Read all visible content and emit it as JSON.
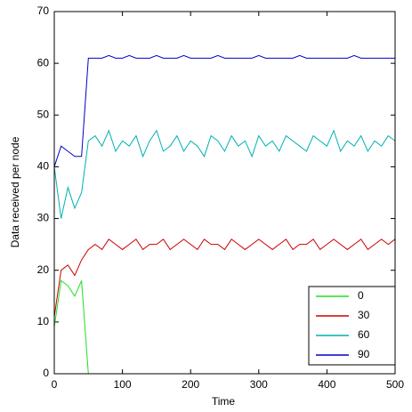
{
  "chart_data": {
    "type": "line",
    "xlabel": "Time",
    "ylabel": "Data received per node",
    "x": [
      0,
      10,
      20,
      30,
      40,
      50,
      60,
      70,
      80,
      90,
      100,
      110,
      120,
      130,
      140,
      150,
      160,
      170,
      180,
      190,
      200,
      210,
      220,
      230,
      240,
      250,
      260,
      270,
      280,
      290,
      300,
      310,
      320,
      330,
      340,
      350,
      360,
      370,
      380,
      390,
      400,
      410,
      420,
      430,
      440,
      450,
      460,
      470,
      480,
      490,
      500
    ],
    "series": [
      {
        "name": "0",
        "color": "#22dd22",
        "values": [
          9,
          18,
          17,
          15,
          18,
          0,
          null,
          null,
          null,
          null,
          null,
          null,
          null,
          null,
          null,
          null,
          null,
          null,
          null,
          null,
          null,
          null,
          null,
          null,
          null,
          null,
          null,
          null,
          null,
          null,
          null,
          null,
          null,
          null,
          null,
          null,
          null,
          null,
          null,
          null,
          null,
          null,
          null,
          null,
          null,
          null,
          null,
          null,
          null,
          null,
          null
        ]
      },
      {
        "name": "30",
        "color": "#cc0000",
        "values": [
          11,
          20,
          21,
          19,
          22,
          24,
          25,
          24,
          26,
          25,
          24,
          25,
          26,
          24,
          25,
          25,
          26,
          24,
          25,
          26,
          25,
          24,
          26,
          25,
          25,
          24,
          26,
          25,
          24,
          25,
          26,
          25,
          24,
          25,
          26,
          24,
          25,
          25,
          26,
          24,
          25,
          26,
          25,
          24,
          25,
          26,
          24,
          25,
          26,
          25,
          26
        ]
      },
      {
        "name": "60",
        "color": "#00b0b0",
        "values": [
          40,
          30,
          36,
          32,
          35,
          45,
          46,
          44,
          47,
          43,
          45,
          44,
          46,
          42,
          45,
          47,
          43,
          44,
          46,
          43,
          45,
          44,
          42,
          46,
          45,
          43,
          46,
          44,
          45,
          42,
          46,
          44,
          45,
          43,
          46,
          45,
          44,
          43,
          46,
          45,
          44,
          47,
          43,
          45,
          44,
          46,
          43,
          45,
          44,
          46,
          45
        ]
      },
      {
        "name": "90",
        "color": "#0000cc",
        "values": [
          40,
          44,
          43,
          42,
          42,
          61,
          61,
          61,
          61.5,
          61,
          61,
          61.5,
          61,
          61,
          61,
          61.5,
          61,
          61,
          61,
          61.5,
          61,
          61,
          61,
          61,
          61.5,
          61,
          61,
          61,
          61,
          61,
          61.5,
          61,
          61,
          61,
          61,
          61,
          61.5,
          61,
          61,
          61,
          61,
          61,
          61,
          61,
          61.5,
          61,
          61,
          61,
          61,
          61,
          61
        ]
      }
    ],
    "xlim": [
      0,
      500
    ],
    "xticks": [
      0,
      100,
      200,
      300,
      400,
      500
    ],
    "ylim": [
      0,
      70
    ],
    "yticks": [
      0,
      10,
      20,
      30,
      40,
      50,
      60,
      70
    ],
    "grid": false,
    "legend": "lower right"
  }
}
